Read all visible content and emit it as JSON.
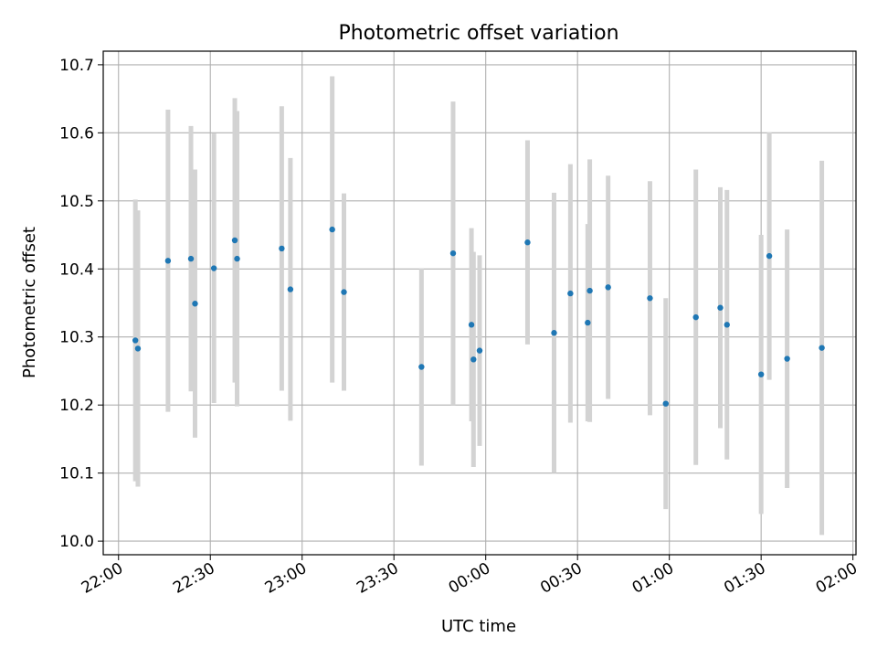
{
  "chart_data": {
    "type": "scatter",
    "title": "Photometric offset variation",
    "xlabel": "UTC time",
    "ylabel": "Photometric offset",
    "x_unit": "time of day (HH:MM, spans midnight)",
    "xlim": [
      "21:55",
      "02:01"
    ],
    "ylim": [
      9.98,
      10.72
    ],
    "grid": true,
    "x_ticks": [
      "22:00",
      "22:30",
      "23:00",
      "23:30",
      "00:00",
      "00:30",
      "01:00",
      "01:30",
      "02:00"
    ],
    "y_ticks": [
      "10.0",
      "10.1",
      "10.2",
      "10.3",
      "10.4",
      "10.5",
      "10.6",
      "10.7"
    ],
    "colors": {
      "points": "#1f77b4",
      "error_bars": "#d3d3d3",
      "grid": "#b0b0b0"
    },
    "points": [
      {
        "x": "22:05:30",
        "y": 10.295,
        "yerr": 0.207
      },
      {
        "x": "22:06:20",
        "y": 10.283,
        "yerr": 0.203
      },
      {
        "x": "22:16:10",
        "y": 10.412,
        "yerr": 0.222
      },
      {
        "x": "22:23:40",
        "y": 10.415,
        "yerr": 0.195
      },
      {
        "x": "22:25:00",
        "y": 10.349,
        "yerr": 0.197
      },
      {
        "x": "22:31:10",
        "y": 10.401,
        "yerr": 0.198
      },
      {
        "x": "22:38:00",
        "y": 10.442,
        "yerr": 0.209
      },
      {
        "x": "22:38:45",
        "y": 10.415,
        "yerr": 0.217
      },
      {
        "x": "22:53:20",
        "y": 10.43,
        "yerr": 0.209
      },
      {
        "x": "22:56:10",
        "y": 10.37,
        "yerr": 0.193
      },
      {
        "x": "23:09:50",
        "y": 10.458,
        "yerr": 0.225
      },
      {
        "x": "23:13:40",
        "y": 10.366,
        "yerr": 0.145
      },
      {
        "x": "23:39:00",
        "y": 10.256,
        "yerr": 0.145
      },
      {
        "x": "23:49:20",
        "y": 10.423,
        "yerr": 0.223
      },
      {
        "x": "23:55:20",
        "y": 10.318,
        "yerr": 0.142
      },
      {
        "x": "23:56:00",
        "y": 10.267,
        "yerr": 0.158
      },
      {
        "x": "23:58:00",
        "y": 10.28,
        "yerr": 0.14
      },
      {
        "x": "00:13:40",
        "y": 10.439,
        "yerr": 0.15
      },
      {
        "x": "00:22:20",
        "y": 10.306,
        "yerr": 0.206
      },
      {
        "x": "00:27:40",
        "y": 10.364,
        "yerr": 0.19
      },
      {
        "x": "00:33:20",
        "y": 10.321,
        "yerr": 0.145
      },
      {
        "x": "00:34:00",
        "y": 10.368,
        "yerr": 0.193
      },
      {
        "x": "00:40:00",
        "y": 10.373,
        "yerr": 0.164
      },
      {
        "x": "00:53:40",
        "y": 10.357,
        "yerr": 0.172
      },
      {
        "x": "00:58:50",
        "y": 10.202,
        "yerr": 0.155
      },
      {
        "x": "01:08:40",
        "y": 10.329,
        "yerr": 0.217
      },
      {
        "x": "01:16:40",
        "y": 10.343,
        "yerr": 0.177
      },
      {
        "x": "01:18:50",
        "y": 10.318,
        "yerr": 0.198
      },
      {
        "x": "01:30:00",
        "y": 10.245,
        "yerr": 0.205
      },
      {
        "x": "01:32:40",
        "y": 10.419,
        "yerr": 0.182
      },
      {
        "x": "01:38:30",
        "y": 10.268,
        "yerr": 0.19
      },
      {
        "x": "01:49:50",
        "y": 10.284,
        "yerr": 0.275
      }
    ]
  }
}
